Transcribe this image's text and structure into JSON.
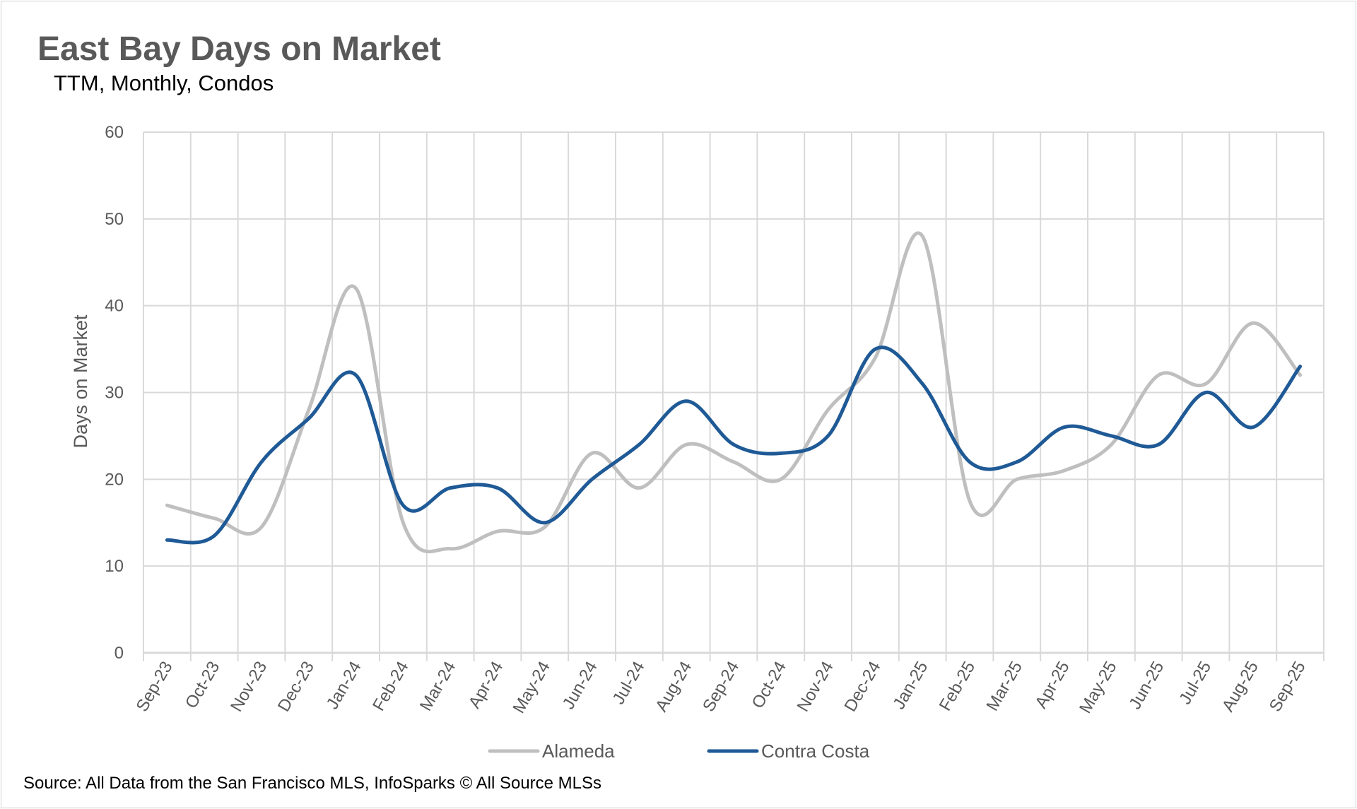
{
  "chart_data": {
    "type": "line",
    "title": "East Bay Days on Market",
    "subtitle": "TTM, Monthly, Condos",
    "xlabel": "",
    "ylabel": "Days on Market",
    "ylim": [
      0,
      60
    ],
    "yticks": [
      0,
      10,
      20,
      30,
      40,
      50,
      60
    ],
    "grid": true,
    "smoothed": true,
    "legend_position": "bottom",
    "categories": [
      "Sep-23",
      "Oct-23",
      "Nov-23",
      "Dec-23",
      "Jan-24",
      "Feb-24",
      "Mar-24",
      "Apr-24",
      "May-24",
      "Jun-24",
      "Jul-24",
      "Aug-24",
      "Sep-24",
      "Oct-24",
      "Nov-24",
      "Dec-24",
      "Jan-25",
      "Feb-25",
      "Mar-25",
      "Apr-25",
      "May-25",
      "Jun-25",
      "Jul-25",
      "Aug-25",
      "Sep-25"
    ],
    "series": [
      {
        "name": "Alameda",
        "color": "#BFBFBF",
        "values": [
          17,
          15.5,
          14.5,
          28,
          42,
          15,
          12,
          14,
          14.5,
          23,
          19,
          24,
          22,
          20,
          28,
          34,
          48,
          17.5,
          20,
          21,
          24,
          32,
          31,
          38,
          32
        ]
      },
      {
        "name": "Contra Costa",
        "color": "#1F5A96",
        "values": [
          13,
          13.5,
          22,
          27,
          32,
          17,
          19,
          19,
          15,
          20,
          24,
          29,
          24,
          23,
          25,
          35,
          31,
          22,
          22,
          26,
          25,
          24,
          30,
          26,
          33
        ]
      }
    ],
    "source": "Source: All Data from the San Francisco MLS, InfoSparks © All Source MLSs"
  }
}
